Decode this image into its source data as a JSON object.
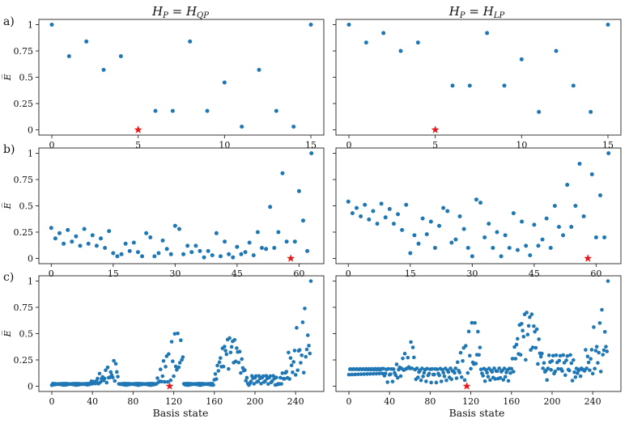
{
  "figure": {
    "row_labels": [
      "a)",
      "b)",
      "c)"
    ],
    "column_titles": [
      "H_P = H_QP",
      "H_P = H_LP"
    ],
    "xlabel": "Basis state",
    "ylabel": "E̅"
  },
  "chart_data": [
    {
      "type": "scatter",
      "id": "a-left",
      "row": "a)",
      "title": "H_P = H_QP",
      "xlabel": "",
      "ylabel": "E̅",
      "xlim": [
        -0.75,
        15.75
      ],
      "ylim": [
        -0.05,
        1.05
      ],
      "xticks": [
        0,
        5,
        10,
        15
      ],
      "xtick_labels": [
        "0",
        "5",
        "10",
        "15"
      ],
      "yticks": [
        0,
        0.25,
        0.5,
        0.75,
        1
      ],
      "ytick_labels": [
        "0",
        "0.25",
        "0.5",
        "0.75",
        "1"
      ],
      "x": [
        0,
        1,
        2,
        3,
        4,
        6,
        7,
        8,
        9,
        10,
        11,
        12,
        13,
        14,
        15
      ],
      "y": [
        1,
        0.7,
        0.84,
        0.57,
        0.7,
        0.18,
        0.18,
        0.84,
        0.18,
        0.45,
        0.03,
        0.57,
        0.18,
        0.03,
        1
      ],
      "marker": {
        "x": 5,
        "y": 0,
        "label": "ground state"
      },
      "point_color": "#1f77b4",
      "marker_color": "#e8191b"
    },
    {
      "type": "scatter",
      "id": "a-right",
      "row": "a)",
      "title": "H_P = H_LP",
      "xlabel": "",
      "ylabel": "",
      "xlim": [
        -0.75,
        15.75
      ],
      "ylim": [
        -0.05,
        1.05
      ],
      "xticks": [
        0,
        5,
        10,
        15
      ],
      "xtick_labels": [
        "0",
        "5",
        "10",
        "15"
      ],
      "yticks": [
        0,
        0.25,
        0.5,
        0.75,
        1
      ],
      "ytick_labels": [],
      "x": [
        0,
        1,
        2,
        3,
        4,
        6,
        7,
        8,
        9,
        10,
        11,
        12,
        13,
        14,
        15
      ],
      "y": [
        1,
        0.83,
        0.92,
        0.75,
        0.83,
        0.42,
        0.42,
        0.92,
        0.42,
        0.67,
        0.17,
        0.75,
        0.42,
        0.17,
        1
      ],
      "marker": {
        "x": 5,
        "y": 0,
        "label": "ground state"
      },
      "point_color": "#1f77b4",
      "marker_color": "#e8191b"
    },
    {
      "type": "scatter",
      "id": "b-left",
      "row": "b)",
      "title": "",
      "xlabel": "",
      "ylabel": "E̅",
      "xlim": [
        -3,
        66
      ],
      "ylim": [
        -0.05,
        1.05
      ],
      "xticks": [
        0,
        15,
        30,
        45,
        60
      ],
      "xtick_labels": [
        "0",
        "15",
        "30",
        "45",
        "60"
      ],
      "yticks": [
        0,
        0.25,
        0.5,
        0.75,
        1
      ],
      "ytick_labels": [
        "0",
        "0.25",
        "0.5",
        "0.75",
        "1"
      ],
      "x": [
        0,
        1,
        2,
        3,
        4,
        5,
        6,
        7,
        8,
        9,
        10,
        11,
        12,
        13,
        14,
        15,
        16,
        17,
        18,
        19,
        20,
        21,
        22,
        23,
        24,
        25,
        26,
        27,
        28,
        29,
        30,
        31,
        32,
        33,
        34,
        35,
        36,
        37,
        38,
        39,
        40,
        41,
        42,
        43,
        44,
        45,
        46,
        47,
        48,
        49,
        50,
        51,
        52,
        53,
        54,
        55,
        56,
        57,
        59,
        60,
        61,
        62,
        63
      ],
      "y": [
        0.29,
        0.19,
        0.24,
        0.14,
        0.27,
        0.16,
        0.21,
        0.12,
        0.28,
        0.14,
        0.22,
        0.12,
        0.19,
        0.1,
        0.26,
        0.05,
        0.02,
        0.04,
        0.14,
        0.07,
        0.15,
        0.06,
        0.02,
        0.24,
        0.2,
        0.02,
        0.05,
        0.17,
        0.09,
        0.04,
        0.31,
        0.28,
        0.04,
        0.12,
        0.06,
        0.12,
        0.07,
        0.01,
        0.07,
        0.03,
        0.24,
        0.02,
        0.16,
        0.04,
        0.01,
        0.11,
        0.04,
        0.06,
        0.15,
        0.03,
        0.25,
        0.1,
        0.09,
        0.49,
        0.1,
        0.25,
        0.81,
        0.16,
        0.16,
        0.64,
        0.36,
        0.07,
        1
      ],
      "marker": {
        "x": 58,
        "y": 0,
        "label": "ground state"
      },
      "point_color": "#1f77b4",
      "marker_color": "#e8191b"
    },
    {
      "type": "scatter",
      "id": "b-right",
      "row": "b)",
      "title": "",
      "xlabel": "",
      "ylabel": "",
      "xlim": [
        -3,
        66
      ],
      "ylim": [
        -0.05,
        1.05
      ],
      "xticks": [
        0,
        15,
        30,
        45,
        60
      ],
      "xtick_labels": [
        "0",
        "15",
        "30",
        "45",
        "60"
      ],
      "yticks": [
        0,
        0.25,
        0.5,
        0.75,
        1
      ],
      "ytick_labels": [],
      "x": [
        0,
        1,
        2,
        3,
        4,
        5,
        6,
        7,
        8,
        9,
        10,
        11,
        12,
        13,
        14,
        15,
        16,
        17,
        18,
        19,
        20,
        21,
        22,
        23,
        24,
        25,
        26,
        27,
        28,
        29,
        30,
        31,
        32,
        33,
        34,
        35,
        36,
        37,
        38,
        39,
        40,
        41,
        42,
        43,
        44,
        45,
        46,
        47,
        48,
        49,
        50,
        51,
        52,
        53,
        54,
        55,
        56,
        57,
        59,
        60,
        61,
        62,
        63
      ],
      "y": [
        0.54,
        0.43,
        0.48,
        0.4,
        0.51,
        0.37,
        0.45,
        0.33,
        0.52,
        0.39,
        0.47,
        0.33,
        0.42,
        0.27,
        0.51,
        0.05,
        0.22,
        0.14,
        0.38,
        0.23,
        0.35,
        0.1,
        0.31,
        0.48,
        0.45,
        0.15,
        0.18,
        0.4,
        0.28,
        0.1,
        0.02,
        0.56,
        0.53,
        0.2,
        0.33,
        0.1,
        0.25,
        0.02,
        0.22,
        0.1,
        0.43,
        0.08,
        0.35,
        0.12,
        0.03,
        0.32,
        0.12,
        0.18,
        0.38,
        0.1,
        0.5,
        0.3,
        0.22,
        0.7,
        0.3,
        0.5,
        0.9,
        0.4,
        0.8,
        0.2,
        0.6,
        0.2,
        1
      ],
      "marker": {
        "x": 58,
        "y": 0,
        "label": "ground state"
      },
      "point_color": "#1f77b4",
      "marker_color": "#e8191b"
    },
    {
      "type": "scatter",
      "id": "c-left",
      "row": "c)",
      "title": "",
      "xlabel": "Basis state",
      "ylabel": "E̅",
      "xlim": [
        -12.75,
        267.75
      ],
      "ylim": [
        -0.05,
        1.05
      ],
      "xticks": [
        0,
        40,
        80,
        120,
        160,
        200,
        240
      ],
      "xtick_labels": [
        "0",
        "40",
        "80",
        "120",
        "160",
        "200",
        "240"
      ],
      "yticks": [
        0,
        0.25,
        0.5,
        0.75,
        1
      ],
      "ytick_labels": [
        "0",
        "0.25",
        "0.5",
        "0.75",
        "1"
      ],
      "generator": "256 basis states; energies read off the plot (clusters rising near 40-64, 104-128, 160-190, 224-255)",
      "marker": {
        "x": 116,
        "y": 0,
        "label": "ground state"
      },
      "point_color": "#1f77b4",
      "marker_color": "#e8191b"
    },
    {
      "type": "scatter",
      "id": "c-right",
      "row": "c)",
      "title": "",
      "xlabel": "Basis state",
      "ylabel": "",
      "xlim": [
        -12.75,
        267.75
      ],
      "ylim": [
        -0.05,
        1.05
      ],
      "xticks": [
        0,
        40,
        80,
        120,
        160,
        200,
        240
      ],
      "xtick_labels": [
        "0",
        "40",
        "80",
        "120",
        "160",
        "200",
        "240"
      ],
      "yticks": [
        0,
        0.25,
        0.5,
        0.75,
        1
      ],
      "ytick_labels": [],
      "generator": "256 basis states; energies read off the plot (flat band near 0.15 for 0-32, clusters near 40-64, 104-128, 160-190, 224-255)",
      "marker": {
        "x": 116,
        "y": 0,
        "label": "ground state"
      },
      "point_color": "#1f77b4",
      "marker_color": "#e8191b"
    }
  ]
}
